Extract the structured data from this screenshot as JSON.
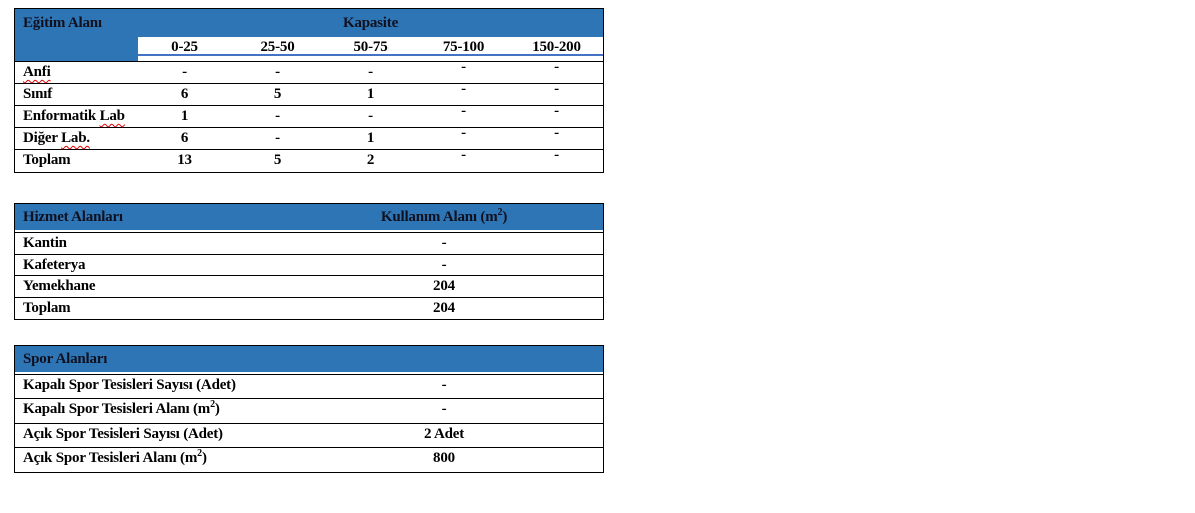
{
  "colors": {
    "header_fill_blue": "#2E75B6",
    "subheader_underline_blue": "#4472C4",
    "spellcheck_squiggle_red": "#e60000",
    "border_black": "#000000"
  },
  "education_table": {
    "title": "Eğitim Alanı",
    "capacity_header": "Kapasite",
    "columns": [
      "0-25",
      "25-50",
      "50-75",
      "75-100",
      "150-200"
    ],
    "rows": [
      {
        "label_pre": "",
        "label_misspelled": "Anfi",
        "values": [
          "-",
          "-",
          "-",
          "-",
          "-"
        ]
      },
      {
        "label_pre": "Sınıf",
        "label_misspelled": "",
        "values": [
          "6",
          "5",
          "1",
          "-",
          "-"
        ]
      },
      {
        "label_pre": "Enformatik ",
        "label_misspelled": "Lab",
        "values": [
          "1",
          "-",
          "-",
          "-",
          "-"
        ]
      },
      {
        "label_pre": "Diğer ",
        "label_misspelled": "Lab.",
        "values": [
          "6",
          "-",
          "1",
          "-",
          "-"
        ]
      },
      {
        "label_pre": "Toplam",
        "label_misspelled": "",
        "values": [
          "13",
          "5",
          "2",
          "-",
          "-"
        ]
      }
    ]
  },
  "service_table": {
    "title": "Hizmet Alanları",
    "value_header_pre": "Kullanım Alanı (m",
    "value_header_sup": "2",
    "value_header_post": ")",
    "rows": [
      {
        "label": "Kantin",
        "value": "-"
      },
      {
        "label": "Kafeterya",
        "value": "-"
      },
      {
        "label": "Yemekhane",
        "value": "204"
      },
      {
        "label": "Toplam",
        "value": "204"
      }
    ]
  },
  "sports_table": {
    "title": "Spor Alanları",
    "rows": [
      {
        "label_pre": "Kapalı Spor Tesisleri Sayısı (Adet)",
        "label_sup": "",
        "label_post": "",
        "value": "-"
      },
      {
        "label_pre": "Kapalı Spor Tesisleri Alanı (m",
        "label_sup": "2",
        "label_post": ")",
        "value": "-"
      },
      {
        "label_pre": "Açık Spor Tesisleri Sayısı (Adet)",
        "label_sup": "",
        "label_post": "",
        "value": "2 Adet"
      },
      {
        "label_pre": "Açık Spor Tesisleri Alanı (m",
        "label_sup": "2",
        "label_post": ")",
        "value": "800"
      }
    ]
  }
}
